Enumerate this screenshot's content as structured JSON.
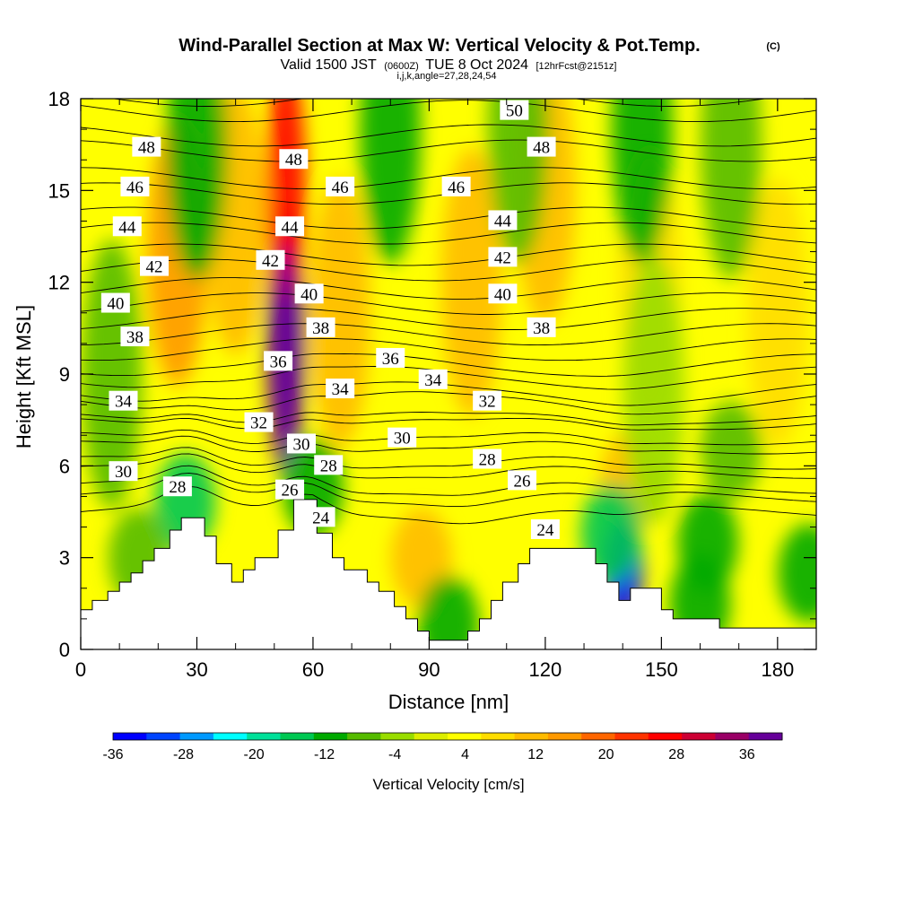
{
  "title": {
    "main": "Wind-Parallel Section at Max W: Vertical Velocity & Pot.Temp.",
    "copyright": "(C)",
    "valid_prefix": "Valid 1500 JST",
    "valid_utc": "(0600Z)",
    "valid_date": "TUE 8 Oct 2024",
    "forecast": "[12hrFcst@2151z]",
    "indices": "i,j,k,angle=27,28,24,54"
  },
  "chart_data": {
    "type": "heatmap",
    "xlabel": "Distance [nm]",
    "ylabel": "Height [Kft MSL]",
    "xlim": [
      0,
      190
    ],
    "ylim": [
      0,
      18
    ],
    "x_ticks": [
      0,
      30,
      60,
      90,
      120,
      150,
      180
    ],
    "x_tick_labels": [
      "0",
      "30",
      "60",
      "90",
      "120",
      "150",
      "180"
    ],
    "y_ticks": [
      0,
      3,
      6,
      9,
      12,
      15,
      18
    ],
    "y_tick_labels": [
      "0",
      "3",
      "6",
      "9",
      "12",
      "15",
      "18"
    ],
    "colorbar": {
      "title": "Vertical Velocity [cm/s]",
      "levels": [
        -36,
        -32,
        -28,
        -24,
        -20,
        -16,
        -12,
        -8,
        -4,
        0,
        4,
        8,
        12,
        16,
        20,
        24,
        28,
        32,
        36,
        40
      ],
      "tick_labels": [
        "-36",
        "-28",
        "-20",
        "-12",
        "-4",
        "4",
        "12",
        "20",
        "28",
        "36"
      ],
      "colors": [
        "#0000ff",
        "#0044ff",
        "#0099ff",
        "#00ffff",
        "#00e099",
        "#00c853",
        "#00aa00",
        "#55bb00",
        "#99dd00",
        "#ddee00",
        "#ffff00",
        "#ffdd00",
        "#ffbb00",
        "#ff9900",
        "#ff6600",
        "#ff3300",
        "#ff0000",
        "#cc0033",
        "#990066",
        "#660099"
      ]
    },
    "terrain": [
      [
        0,
        1.3
      ],
      [
        3,
        1.3
      ],
      [
        3,
        1.6
      ],
      [
        7,
        1.6
      ],
      [
        7,
        1.9
      ],
      [
        10,
        1.9
      ],
      [
        10,
        2.2
      ],
      [
        13,
        2.2
      ],
      [
        13,
        2.5
      ],
      [
        16,
        2.5
      ],
      [
        16,
        2.9
      ],
      [
        19,
        2.9
      ],
      [
        19,
        3.3
      ],
      [
        23,
        3.3
      ],
      [
        23,
        3.9
      ],
      [
        26,
        3.9
      ],
      [
        26,
        4.3
      ],
      [
        32,
        4.3
      ],
      [
        32,
        3.7
      ],
      [
        35,
        3.7
      ],
      [
        35,
        2.8
      ],
      [
        39,
        2.8
      ],
      [
        39,
        2.2
      ],
      [
        42,
        2.2
      ],
      [
        42,
        2.6
      ],
      [
        45,
        2.6
      ],
      [
        45,
        3.0
      ],
      [
        51,
        3.0
      ],
      [
        51,
        3.9
      ],
      [
        55,
        3.9
      ],
      [
        55,
        4.9
      ],
      [
        61,
        4.9
      ],
      [
        61,
        3.8
      ],
      [
        65,
        3.8
      ],
      [
        65,
        3.0
      ],
      [
        68,
        3.0
      ],
      [
        68,
        2.6
      ],
      [
        74,
        2.6
      ],
      [
        74,
        2.2
      ],
      [
        77,
        2.2
      ],
      [
        77,
        1.9
      ],
      [
        81,
        1.9
      ],
      [
        81,
        1.4
      ],
      [
        84,
        1.4
      ],
      [
        84,
        1.0
      ],
      [
        87,
        1.0
      ],
      [
        87,
        0.6
      ],
      [
        90,
        0.6
      ],
      [
        90,
        0.3
      ],
      [
        100,
        0.3
      ],
      [
        100,
        0.6
      ],
      [
        103,
        0.6
      ],
      [
        103,
        1.0
      ],
      [
        106,
        1.0
      ],
      [
        106,
        1.6
      ],
      [
        109,
        1.6
      ],
      [
        109,
        2.2
      ],
      [
        113,
        2.2
      ],
      [
        113,
        2.8
      ],
      [
        116,
        2.8
      ],
      [
        116,
        3.3
      ],
      [
        133,
        3.3
      ],
      [
        133,
        2.8
      ],
      [
        136,
        2.8
      ],
      [
        136,
        2.2
      ],
      [
        139,
        2.2
      ],
      [
        139,
        1.6
      ],
      [
        142,
        1.6
      ],
      [
        142,
        2.0
      ],
      [
        150,
        2.0
      ],
      [
        150,
        1.3
      ],
      [
        153,
        1.3
      ],
      [
        153,
        1.0
      ],
      [
        165,
        1.0
      ],
      [
        165,
        0.7
      ],
      [
        190,
        0.7
      ]
    ],
    "w_features": [
      {
        "x": 53,
        "z": 10,
        "value": 40
      },
      {
        "x": 53,
        "z": 15,
        "value": 30
      },
      {
        "x": 25,
        "z": 13,
        "value": 16
      },
      {
        "x": 40,
        "z": 14,
        "value": 14
      },
      {
        "x": 67,
        "z": 11,
        "value": 14
      },
      {
        "x": 101,
        "z": 12,
        "value": 14
      },
      {
        "x": 120,
        "z": 15,
        "value": 12
      },
      {
        "x": 147,
        "z": 12,
        "value": 10
      },
      {
        "x": 180,
        "z": 11,
        "value": 10
      },
      {
        "x": 142,
        "z": 5.5,
        "value": 12
      },
      {
        "x": 88,
        "z": 3.0,
        "value": 12
      },
      {
        "x": 30,
        "z": 16.5,
        "value": -12
      },
      {
        "x": 80,
        "z": 17,
        "value": -10
      },
      {
        "x": 113,
        "z": 17,
        "value": -8
      },
      {
        "x": 145,
        "z": 17,
        "value": -10
      },
      {
        "x": 168,
        "z": 16.5,
        "value": -6
      },
      {
        "x": 8,
        "z": 9,
        "value": -6
      },
      {
        "x": 140,
        "z": 2.6,
        "value": -34
      },
      {
        "x": 137,
        "z": 3.8,
        "value": -16
      },
      {
        "x": 27,
        "z": 4.8,
        "value": -14
      },
      {
        "x": 60,
        "z": 5.3,
        "value": -12
      },
      {
        "x": 95,
        "z": 0.8,
        "value": -12
      },
      {
        "x": 162,
        "z": 3.5,
        "value": -10
      },
      {
        "x": 160,
        "z": 1.5,
        "value": -10
      },
      {
        "x": 168,
        "z": 6.5,
        "value": -6
      },
      {
        "x": 188,
        "z": 2.5,
        "value": -10
      },
      {
        "x": 15,
        "z": 3.0,
        "value": -8
      },
      {
        "x": 148,
        "z": 8.5,
        "value": -4
      }
    ],
    "contours": [
      {
        "level": 24,
        "anchor_z": 4.5
      },
      {
        "level": 26,
        "anchor_z": 5.3
      },
      {
        "level": 28,
        "anchor_z": 6.1
      },
      {
        "level": 30,
        "anchor_z": 6.9
      },
      {
        "level": 32,
        "anchor_z": 7.6
      },
      {
        "level": 34,
        "anchor_z": 8.4
      },
      {
        "level": 36,
        "anchor_z": 9.3
      },
      {
        "level": 38,
        "anchor_z": 10.3
      },
      {
        "level": 40,
        "anchor_z": 11.3
      },
      {
        "level": 42,
        "anchor_z": 12.4
      },
      {
        "level": 44,
        "anchor_z": 13.6
      },
      {
        "level": 46,
        "anchor_z": 14.9
      },
      {
        "level": 48,
        "anchor_z": 16.3
      },
      {
        "level": 50,
        "anchor_z": 17.6
      }
    ],
    "contour_labels": [
      {
        "text": "48",
        "x": 17,
        "z": 16.4
      },
      {
        "text": "46",
        "x": 14,
        "z": 15.1
      },
      {
        "text": "44",
        "x": 12,
        "z": 13.8
      },
      {
        "text": "42",
        "x": 19,
        "z": 12.5
      },
      {
        "text": "40",
        "x": 9,
        "z": 11.3
      },
      {
        "text": "38",
        "x": 14,
        "z": 10.2
      },
      {
        "text": "34",
        "x": 11,
        "z": 8.1
      },
      {
        "text": "30",
        "x": 11,
        "z": 5.8
      },
      {
        "text": "28",
        "x": 25,
        "z": 5.3
      },
      {
        "text": "32",
        "x": 46,
        "z": 7.4
      },
      {
        "text": "36",
        "x": 51,
        "z": 9.4
      },
      {
        "text": "42",
        "x": 49,
        "z": 12.7
      },
      {
        "text": "44",
        "x": 54,
        "z": 13.8
      },
      {
        "text": "48",
        "x": 55,
        "z": 16.0
      },
      {
        "text": "30",
        "x": 57,
        "z": 6.7
      },
      {
        "text": "26",
        "x": 54,
        "z": 5.2
      },
      {
        "text": "24",
        "x": 62,
        "z": 4.3
      },
      {
        "text": "28",
        "x": 64,
        "z": 6.0
      },
      {
        "text": "40",
        "x": 59,
        "z": 11.6
      },
      {
        "text": "38",
        "x": 62,
        "z": 10.5
      },
      {
        "text": "34",
        "x": 67,
        "z": 8.5
      },
      {
        "text": "46",
        "x": 67,
        "z": 15.1
      },
      {
        "text": "36",
        "x": 80,
        "z": 9.5
      },
      {
        "text": "30",
        "x": 83,
        "z": 6.9
      },
      {
        "text": "34",
        "x": 91,
        "z": 8.8
      },
      {
        "text": "46",
        "x": 97,
        "z": 15.1
      },
      {
        "text": "32",
        "x": 105,
        "z": 8.1
      },
      {
        "text": "28",
        "x": 105,
        "z": 6.2
      },
      {
        "text": "26",
        "x": 114,
        "z": 5.5
      },
      {
        "text": "24",
        "x": 120,
        "z": 3.9
      },
      {
        "text": "44",
        "x": 109,
        "z": 14.0
      },
      {
        "text": "42",
        "x": 109,
        "z": 12.8
      },
      {
        "text": "40",
        "x": 109,
        "z": 11.6
      },
      {
        "text": "50",
        "x": 112,
        "z": 17.6
      },
      {
        "text": "48",
        "x": 119,
        "z": 16.4
      },
      {
        "text": "38",
        "x": 119,
        "z": 10.5
      }
    ]
  }
}
